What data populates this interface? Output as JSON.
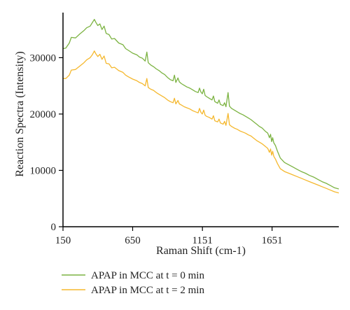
{
  "chart_data": {
    "type": "line",
    "xlabel": "Raman Shift (cm-1)",
    "ylabel": "Reaction Spectra (Intensity)",
    "xlim": [
      150,
      2130
    ],
    "ylim": [
      0,
      38000
    ],
    "x_ticks": [
      150,
      650,
      1151,
      1651
    ],
    "y_ticks": [
      0,
      10000,
      20000,
      30000
    ],
    "grid": false,
    "legend_position": "bottom",
    "series": [
      {
        "name": "APAP in MCC at t = 0 min",
        "color": "#7cb342",
        "points": [
          [
            150,
            31600
          ],
          [
            170,
            31700
          ],
          [
            195,
            32600
          ],
          [
            210,
            33600
          ],
          [
            240,
            33500
          ],
          [
            270,
            34200
          ],
          [
            300,
            34800
          ],
          [
            320,
            35300
          ],
          [
            345,
            35600
          ],
          [
            360,
            36200
          ],
          [
            375,
            36800
          ],
          [
            385,
            36300
          ],
          [
            400,
            35700
          ],
          [
            415,
            36000
          ],
          [
            430,
            35000
          ],
          [
            445,
            35600
          ],
          [
            460,
            34300
          ],
          [
            480,
            34100
          ],
          [
            500,
            33300
          ],
          [
            520,
            33400
          ],
          [
            550,
            32600
          ],
          [
            580,
            32300
          ],
          [
            600,
            31600
          ],
          [
            620,
            31300
          ],
          [
            650,
            30800
          ],
          [
            680,
            30500
          ],
          [
            700,
            30100
          ],
          [
            720,
            29900
          ],
          [
            740,
            29400
          ],
          [
            752,
            31000
          ],
          [
            762,
            29100
          ],
          [
            780,
            28700
          ],
          [
            800,
            28400
          ],
          [
            820,
            28000
          ],
          [
            840,
            27700
          ],
          [
            860,
            27300
          ],
          [
            880,
            27000
          ],
          [
            900,
            26500
          ],
          [
            920,
            26100
          ],
          [
            940,
            25900
          ],
          [
            950,
            26900
          ],
          [
            960,
            25600
          ],
          [
            975,
            26400
          ],
          [
            985,
            25700
          ],
          [
            1000,
            25400
          ],
          [
            1020,
            25100
          ],
          [
            1040,
            24800
          ],
          [
            1060,
            24600
          ],
          [
            1080,
            24300
          ],
          [
            1100,
            24000
          ],
          [
            1120,
            23800
          ],
          [
            1130,
            24600
          ],
          [
            1140,
            23900
          ],
          [
            1150,
            23600
          ],
          [
            1160,
            24400
          ],
          [
            1170,
            23300
          ],
          [
            1180,
            23100
          ],
          [
            1200,
            22800
          ],
          [
            1220,
            22500
          ],
          [
            1230,
            23200
          ],
          [
            1240,
            22200
          ],
          [
            1260,
            21900
          ],
          [
            1270,
            22500
          ],
          [
            1280,
            21700
          ],
          [
            1300,
            21500
          ],
          [
            1310,
            22000
          ],
          [
            1320,
            21300
          ],
          [
            1335,
            23800
          ],
          [
            1345,
            21400
          ],
          [
            1360,
            21000
          ],
          [
            1380,
            20700
          ],
          [
            1400,
            20400
          ],
          [
            1420,
            20100
          ],
          [
            1440,
            19900
          ],
          [
            1460,
            19600
          ],
          [
            1480,
            19300
          ],
          [
            1500,
            19000
          ],
          [
            1520,
            18600
          ],
          [
            1540,
            18200
          ],
          [
            1560,
            17800
          ],
          [
            1580,
            17500
          ],
          [
            1600,
            17000
          ],
          [
            1620,
            16600
          ],
          [
            1632,
            15800
          ],
          [
            1640,
            16400
          ],
          [
            1648,
            15100
          ],
          [
            1655,
            15800
          ],
          [
            1663,
            14900
          ],
          [
            1675,
            14400
          ],
          [
            1690,
            13400
          ],
          [
            1710,
            12200
          ],
          [
            1740,
            11400
          ],
          [
            1770,
            11000
          ],
          [
            1800,
            10600
          ],
          [
            1830,
            10200
          ],
          [
            1860,
            9800
          ],
          [
            1890,
            9500
          ],
          [
            1920,
            9100
          ],
          [
            1950,
            8800
          ],
          [
            1980,
            8400
          ],
          [
            2010,
            8000
          ],
          [
            2040,
            7700
          ],
          [
            2070,
            7300
          ],
          [
            2100,
            6900
          ],
          [
            2130,
            6700
          ]
        ]
      },
      {
        "name": "APAP in MCC at t = 2 min",
        "color": "#f5b82e",
        "points": [
          [
            150,
            26300
          ],
          [
            170,
            26300
          ],
          [
            195,
            26900
          ],
          [
            210,
            27800
          ],
          [
            240,
            27900
          ],
          [
            270,
            28500
          ],
          [
            300,
            29100
          ],
          [
            320,
            29600
          ],
          [
            345,
            30000
          ],
          [
            360,
            30500
          ],
          [
            375,
            31200
          ],
          [
            385,
            30700
          ],
          [
            400,
            30200
          ],
          [
            415,
            30600
          ],
          [
            430,
            29700
          ],
          [
            445,
            30300
          ],
          [
            460,
            29000
          ],
          [
            480,
            28900
          ],
          [
            500,
            28200
          ],
          [
            520,
            28300
          ],
          [
            550,
            27700
          ],
          [
            580,
            27400
          ],
          [
            600,
            26900
          ],
          [
            620,
            26600
          ],
          [
            650,
            26200
          ],
          [
            680,
            25900
          ],
          [
            700,
            25600
          ],
          [
            720,
            25400
          ],
          [
            740,
            25000
          ],
          [
            752,
            26300
          ],
          [
            762,
            24700
          ],
          [
            780,
            24400
          ],
          [
            800,
            24200
          ],
          [
            820,
            23800
          ],
          [
            840,
            23500
          ],
          [
            860,
            23200
          ],
          [
            880,
            22900
          ],
          [
            900,
            22500
          ],
          [
            920,
            22200
          ],
          [
            940,
            22000
          ],
          [
            950,
            22800
          ],
          [
            960,
            21800
          ],
          [
            975,
            22400
          ],
          [
            985,
            21800
          ],
          [
            1000,
            21600
          ],
          [
            1020,
            21300
          ],
          [
            1040,
            21100
          ],
          [
            1060,
            20900
          ],
          [
            1080,
            20600
          ],
          [
            1100,
            20400
          ],
          [
            1120,
            20200
          ],
          [
            1130,
            21000
          ],
          [
            1140,
            20300
          ],
          [
            1150,
            20000
          ],
          [
            1160,
            20700
          ],
          [
            1170,
            19800
          ],
          [
            1180,
            19600
          ],
          [
            1200,
            19400
          ],
          [
            1220,
            19100
          ],
          [
            1230,
            19700
          ],
          [
            1240,
            18800
          ],
          [
            1260,
            18600
          ],
          [
            1270,
            19100
          ],
          [
            1280,
            18400
          ],
          [
            1300,
            18200
          ],
          [
            1310,
            18700
          ],
          [
            1320,
            18000
          ],
          [
            1335,
            20100
          ],
          [
            1345,
            18100
          ],
          [
            1360,
            17800
          ],
          [
            1380,
            17500
          ],
          [
            1400,
            17300
          ],
          [
            1420,
            17000
          ],
          [
            1440,
            16800
          ],
          [
            1460,
            16600
          ],
          [
            1480,
            16300
          ],
          [
            1500,
            16100
          ],
          [
            1520,
            15700
          ],
          [
            1540,
            15300
          ],
          [
            1560,
            15000
          ],
          [
            1580,
            14700
          ],
          [
            1600,
            14300
          ],
          [
            1620,
            13900
          ],
          [
            1632,
            13200
          ],
          [
            1640,
            13800
          ],
          [
            1648,
            12700
          ],
          [
            1655,
            13400
          ],
          [
            1663,
            12500
          ],
          [
            1675,
            12000
          ],
          [
            1690,
            11200
          ],
          [
            1710,
            10300
          ],
          [
            1740,
            9800
          ],
          [
            1770,
            9500
          ],
          [
            1800,
            9200
          ],
          [
            1830,
            8900
          ],
          [
            1860,
            8600
          ],
          [
            1890,
            8300
          ],
          [
            1920,
            8000
          ],
          [
            1950,
            7700
          ],
          [
            1980,
            7400
          ],
          [
            2010,
            7100
          ],
          [
            2040,
            6800
          ],
          [
            2070,
            6500
          ],
          [
            2100,
            6200
          ],
          [
            2130,
            6000
          ]
        ]
      }
    ]
  }
}
